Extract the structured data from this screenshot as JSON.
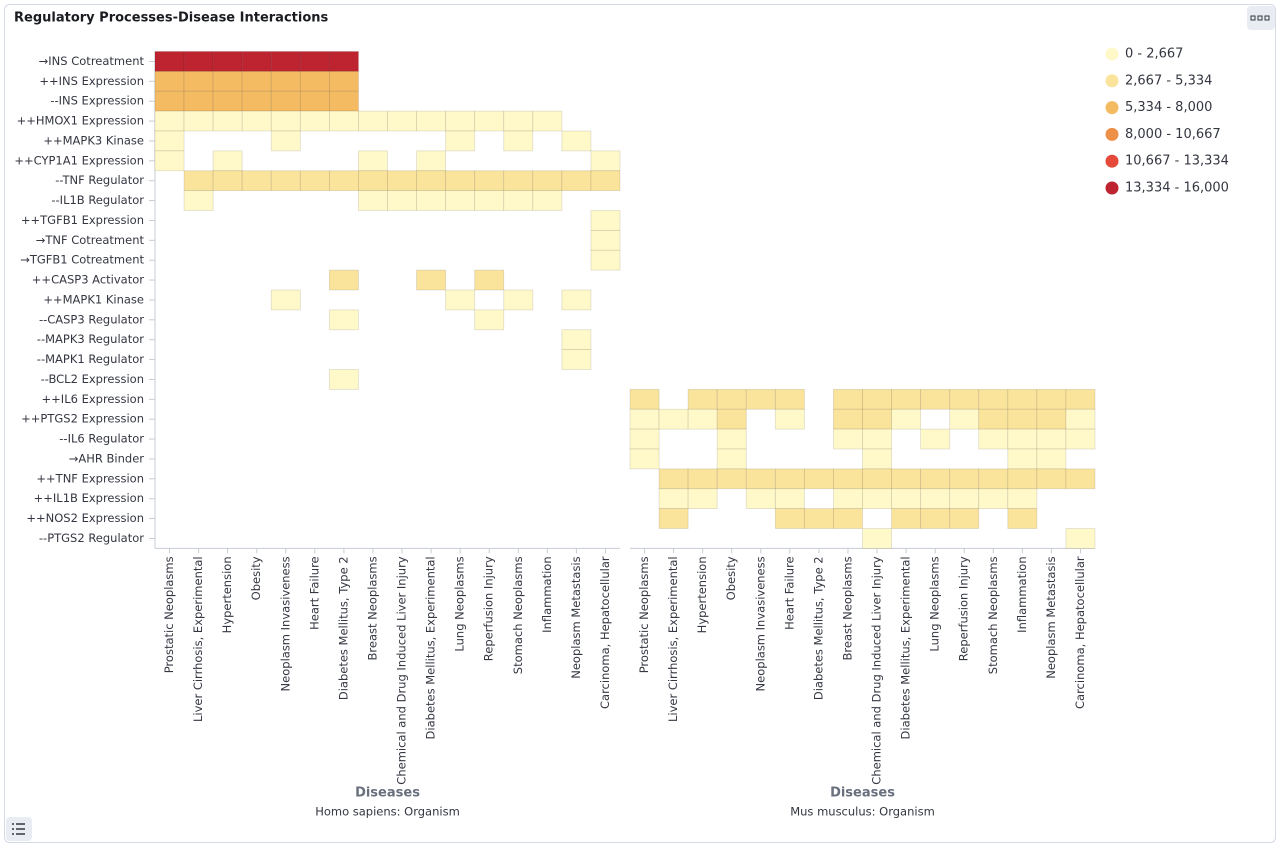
{
  "chart_data": {
    "type": "heatmap",
    "title": "Regulatory Processes-Disease Interactions",
    "rows": [
      "→INS Cotreatment",
      "++INS Expression",
      "--INS Expression",
      "++HMOX1 Expression",
      "++MAPK3 Kinase",
      "++CYP1A1 Expression",
      "--TNF Regulator",
      "--IL1B Regulator",
      "++TGFB1 Expression",
      "→TNF Cotreatment",
      "→TGFB1 Cotreatment",
      "++CASP3 Activator",
      "++MAPK1 Kinase",
      "--CASP3 Regulator",
      "--MAPK3 Regulator",
      "--MAPK1 Regulator",
      "--BCL2 Expression",
      "++IL6 Expression",
      "++PTGS2 Expression",
      "--IL6 Regulator",
      "→AHR Binder",
      "++TNF Expression",
      "++IL1B Expression",
      "++NOS2 Expression",
      "--PTGS2 Regulator"
    ],
    "color_bins": [
      0,
      2667,
      5334,
      8000,
      10667,
      13334,
      16000
    ],
    "legend": [
      {
        "label": "0 - 2,667",
        "color": "#fff8c8"
      },
      {
        "label": "2,667 - 5,334",
        "color": "#fae39b"
      },
      {
        "label": "5,334 - 8,000",
        "color": "#f4bb62"
      },
      {
        "label": "8,000 - 10,667",
        "color": "#ee8f48"
      },
      {
        "label": "10,667 - 13,334",
        "color": "#e4493a"
      },
      {
        "label": "13,334 - 16,000",
        "color": "#bd2430"
      }
    ],
    "panels": [
      {
        "x_label": "Diseases",
        "subtitle": "Homo sapiens: Organism",
        "categories": [
          "Prostatic Neoplasms",
          "Liver Cirrhosis, Experimental",
          "Hypertension",
          "Obesity",
          "Neoplasm Invasiveness",
          "Heart Failure",
          "Diabetes Mellitus, Type 2",
          "Breast Neoplasms",
          "Chemical and Drug Induced Liver Injury",
          "Diabetes Mellitus, Experimental",
          "Lung Neoplasms",
          "Reperfusion Injury",
          "Stomach Neoplasms",
          "Inflammation",
          "Neoplasm Metastasis",
          "Carcinoma, Hepatocellular"
        ],
        "values": [
          [
            14700,
            14700,
            14700,
            14700,
            14700,
            14700,
            14700,
            null,
            null,
            null,
            null,
            null,
            null,
            null,
            null,
            null
          ],
          [
            6700,
            6700,
            6700,
            6700,
            6700,
            6700,
            6700,
            null,
            null,
            null,
            null,
            null,
            null,
            null,
            null,
            null
          ],
          [
            6700,
            6700,
            6700,
            6700,
            6700,
            6700,
            6700,
            null,
            null,
            null,
            null,
            null,
            null,
            null,
            null,
            null
          ],
          [
            1300,
            1300,
            1300,
            1300,
            1300,
            1300,
            1300,
            1300,
            1300,
            1300,
            1300,
            1300,
            1300,
            1300,
            null,
            null
          ],
          [
            1300,
            null,
            null,
            null,
            1300,
            null,
            null,
            null,
            null,
            null,
            1300,
            null,
            1300,
            null,
            1300,
            null
          ],
          [
            1300,
            null,
            1300,
            null,
            null,
            null,
            null,
            1300,
            null,
            1300,
            null,
            null,
            null,
            null,
            null,
            1300
          ],
          [
            null,
            4000,
            4000,
            4000,
            4000,
            4000,
            4000,
            4000,
            4000,
            4000,
            4000,
            4000,
            4000,
            4000,
            4000,
            4000
          ],
          [
            null,
            1300,
            null,
            null,
            null,
            null,
            null,
            1300,
            1300,
            1300,
            1300,
            1300,
            1300,
            1300,
            null,
            null
          ],
          [
            null,
            null,
            null,
            null,
            null,
            null,
            null,
            null,
            null,
            null,
            null,
            null,
            null,
            null,
            null,
            1300
          ],
          [
            null,
            null,
            null,
            null,
            null,
            null,
            null,
            null,
            null,
            null,
            null,
            null,
            null,
            null,
            null,
            1300
          ],
          [
            null,
            null,
            null,
            null,
            null,
            null,
            null,
            null,
            null,
            null,
            null,
            null,
            null,
            null,
            null,
            1300
          ],
          [
            null,
            null,
            null,
            null,
            null,
            null,
            4000,
            null,
            null,
            4000,
            null,
            4000,
            null,
            null,
            null,
            null
          ],
          [
            null,
            null,
            null,
            null,
            1300,
            null,
            null,
            null,
            null,
            null,
            1300,
            null,
            1300,
            null,
            1300,
            null
          ],
          [
            null,
            null,
            null,
            null,
            null,
            null,
            1300,
            null,
            null,
            null,
            null,
            1300,
            null,
            null,
            null,
            null
          ],
          [
            null,
            null,
            null,
            null,
            null,
            null,
            null,
            null,
            null,
            null,
            null,
            null,
            null,
            null,
            1300,
            null
          ],
          [
            null,
            null,
            null,
            null,
            null,
            null,
            null,
            null,
            null,
            null,
            null,
            null,
            null,
            null,
            1300,
            null
          ],
          [
            null,
            null,
            null,
            null,
            null,
            null,
            1300,
            null,
            null,
            null,
            null,
            null,
            null,
            null,
            null,
            null
          ],
          [
            null,
            null,
            null,
            null,
            null,
            null,
            null,
            null,
            null,
            null,
            null,
            null,
            null,
            null,
            null,
            null
          ],
          [
            null,
            null,
            null,
            null,
            null,
            null,
            null,
            null,
            null,
            null,
            null,
            null,
            null,
            null,
            null,
            null
          ],
          [
            null,
            null,
            null,
            null,
            null,
            null,
            null,
            null,
            null,
            null,
            null,
            null,
            null,
            null,
            null,
            null
          ],
          [
            null,
            null,
            null,
            null,
            null,
            null,
            null,
            null,
            null,
            null,
            null,
            null,
            null,
            null,
            null,
            null
          ],
          [
            null,
            null,
            null,
            null,
            null,
            null,
            null,
            null,
            null,
            null,
            null,
            null,
            null,
            null,
            null,
            null
          ],
          [
            null,
            null,
            null,
            null,
            null,
            null,
            null,
            null,
            null,
            null,
            null,
            null,
            null,
            null,
            null,
            null
          ],
          [
            null,
            null,
            null,
            null,
            null,
            null,
            null,
            null,
            null,
            null,
            null,
            null,
            null,
            null,
            null,
            null
          ],
          [
            null,
            null,
            null,
            null,
            null,
            null,
            null,
            null,
            null,
            null,
            null,
            null,
            null,
            null,
            null,
            null
          ]
        ]
      },
      {
        "x_label": "Diseases",
        "subtitle": "Mus musculus: Organism",
        "categories": [
          "Prostatic Neoplasms",
          "Liver Cirrhosis, Experimental",
          "Hypertension",
          "Obesity",
          "Neoplasm Invasiveness",
          "Heart Failure",
          "Diabetes Mellitus, Type 2",
          "Breast Neoplasms",
          "Chemical and Drug Induced Liver Injury",
          "Diabetes Mellitus, Experimental",
          "Lung Neoplasms",
          "Reperfusion Injury",
          "Stomach Neoplasms",
          "Inflammation",
          "Neoplasm Metastasis",
          "Carcinoma, Hepatocellular"
        ],
        "values": [
          [
            null,
            null,
            null,
            null,
            null,
            null,
            null,
            null,
            null,
            null,
            null,
            null,
            null,
            null,
            null,
            null
          ],
          [
            null,
            null,
            null,
            null,
            null,
            null,
            null,
            null,
            null,
            null,
            null,
            null,
            null,
            null,
            null,
            null
          ],
          [
            null,
            null,
            null,
            null,
            null,
            null,
            null,
            null,
            null,
            null,
            null,
            null,
            null,
            null,
            null,
            null
          ],
          [
            null,
            null,
            null,
            null,
            null,
            null,
            null,
            null,
            null,
            null,
            null,
            null,
            null,
            null,
            null,
            null
          ],
          [
            null,
            null,
            null,
            null,
            null,
            null,
            null,
            null,
            null,
            null,
            null,
            null,
            null,
            null,
            null,
            null
          ],
          [
            null,
            null,
            null,
            null,
            null,
            null,
            null,
            null,
            null,
            null,
            null,
            null,
            null,
            null,
            null,
            null
          ],
          [
            null,
            null,
            null,
            null,
            null,
            null,
            null,
            null,
            null,
            null,
            null,
            null,
            null,
            null,
            null,
            null
          ],
          [
            null,
            null,
            null,
            null,
            null,
            null,
            null,
            null,
            null,
            null,
            null,
            null,
            null,
            null,
            null,
            null
          ],
          [
            null,
            null,
            null,
            null,
            null,
            null,
            null,
            null,
            null,
            null,
            null,
            null,
            null,
            null,
            null,
            null
          ],
          [
            null,
            null,
            null,
            null,
            null,
            null,
            null,
            null,
            null,
            null,
            null,
            null,
            null,
            null,
            null,
            null
          ],
          [
            null,
            null,
            null,
            null,
            null,
            null,
            null,
            null,
            null,
            null,
            null,
            null,
            null,
            null,
            null,
            null
          ],
          [
            null,
            null,
            null,
            null,
            null,
            null,
            null,
            null,
            null,
            null,
            null,
            null,
            null,
            null,
            null,
            null
          ],
          [
            null,
            null,
            null,
            null,
            null,
            null,
            null,
            null,
            null,
            null,
            null,
            null,
            null,
            null,
            null,
            null
          ],
          [
            null,
            null,
            null,
            null,
            null,
            null,
            null,
            null,
            null,
            null,
            null,
            null,
            null,
            null,
            null,
            null
          ],
          [
            null,
            null,
            null,
            null,
            null,
            null,
            null,
            null,
            null,
            null,
            null,
            null,
            null,
            null,
            null,
            null
          ],
          [
            null,
            null,
            null,
            null,
            null,
            null,
            null,
            null,
            null,
            null,
            null,
            null,
            null,
            null,
            null,
            null
          ],
          [
            null,
            null,
            null,
            null,
            null,
            null,
            null,
            null,
            null,
            null,
            null,
            null,
            null,
            null,
            null,
            null
          ],
          [
            4000,
            null,
            4000,
            4000,
            4000,
            4000,
            null,
            4000,
            4000,
            4000,
            4000,
            4000,
            4000,
            4000,
            4000,
            4000
          ],
          [
            1300,
            1300,
            1300,
            4000,
            null,
            1300,
            null,
            4000,
            4000,
            1300,
            null,
            1300,
            4000,
            4000,
            4000,
            1300
          ],
          [
            1300,
            null,
            null,
            1300,
            null,
            null,
            null,
            1300,
            1300,
            null,
            1300,
            null,
            1300,
            1300,
            1300,
            1300
          ],
          [
            1300,
            null,
            null,
            1300,
            null,
            null,
            null,
            null,
            1300,
            null,
            null,
            null,
            null,
            1300,
            1300,
            null
          ],
          [
            null,
            4000,
            4000,
            4000,
            4000,
            4000,
            4000,
            4000,
            4000,
            4000,
            4000,
            4000,
            4000,
            4000,
            4000,
            4000
          ],
          [
            null,
            1300,
            1300,
            null,
            1300,
            1300,
            null,
            1300,
            1300,
            1300,
            1300,
            1300,
            1300,
            1300,
            null,
            null
          ],
          [
            null,
            4000,
            null,
            null,
            null,
            4000,
            4000,
            4000,
            null,
            4000,
            4000,
            4000,
            null,
            4000,
            null,
            null
          ],
          [
            null,
            null,
            null,
            null,
            null,
            null,
            null,
            null,
            1300,
            null,
            null,
            null,
            null,
            null,
            null,
            1300
          ]
        ]
      }
    ]
  }
}
